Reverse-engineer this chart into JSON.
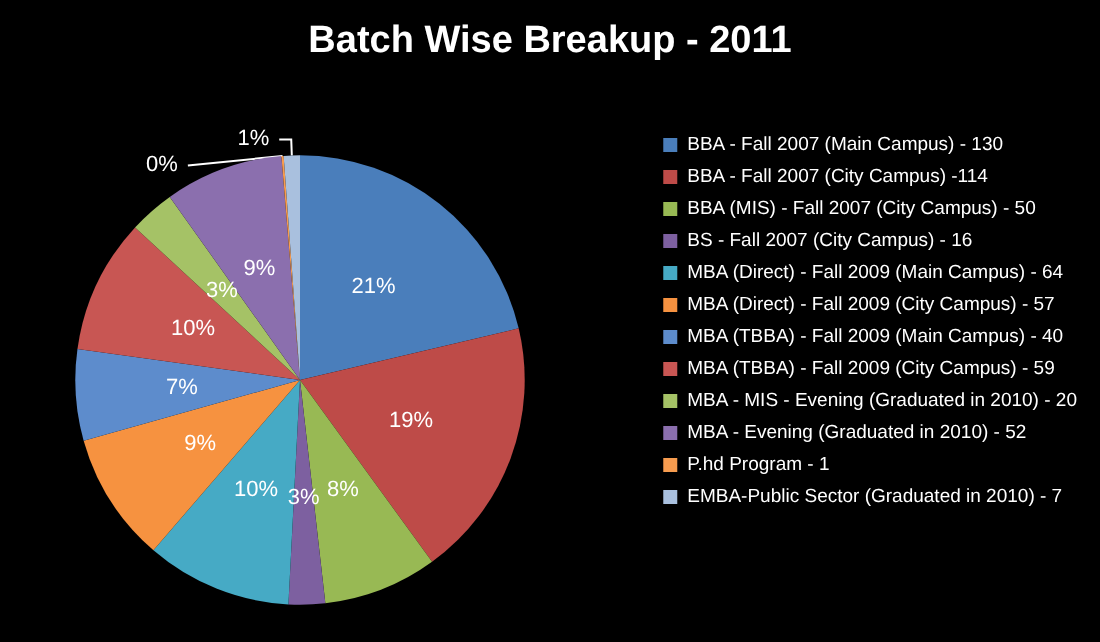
{
  "chart_data": {
    "type": "pie",
    "title": "Batch Wise Breakup - 2011",
    "categories": [
      "BBA - Fall 2007 (Main Campus) - 130",
      "BBA - Fall 2007 (City Campus) -114",
      "BBA (MIS) - Fall 2007 (City Campus) - 50",
      "BS - Fall 2007 (City Campus) - 16",
      "MBA (Direct) - Fall 2009 (Main Campus) - 64",
      "MBA (Direct) - Fall 2009 (City Campus) - 57",
      "MBA (TBBA) - Fall 2009 (Main Campus) - 40",
      "MBA (TBBA) - Fall 2009 (City Campus) - 59",
      "MBA - MIS - Evening (Graduated in 2010) - 20",
      "MBA - Evening (Graduated in 2010) - 52",
      "P.hd Program - 1",
      "EMBA-Public Sector (Graduated in 2010) - 7"
    ],
    "values": [
      21.31,
      18.69,
      8.2,
      2.62,
      10.49,
      9.34,
      6.56,
      9.67,
      3.28,
      8.52,
      0.16,
      1.16
    ],
    "value_labels": [
      "21%",
      "19%",
      "8%",
      "3%",
      "10%",
      "9%",
      "7%",
      "10%",
      "3%",
      "9%",
      "0%",
      "1%"
    ],
    "colors": [
      "#4a7ebb",
      "#be4b48",
      "#98b954",
      "#7d60a0",
      "#46aac5",
      "#f69240",
      "#5d8ccc",
      "#c85653",
      "#a5c266",
      "#8b6fae",
      "#f79c4f",
      "#a9c0de"
    ],
    "legend": "right"
  }
}
